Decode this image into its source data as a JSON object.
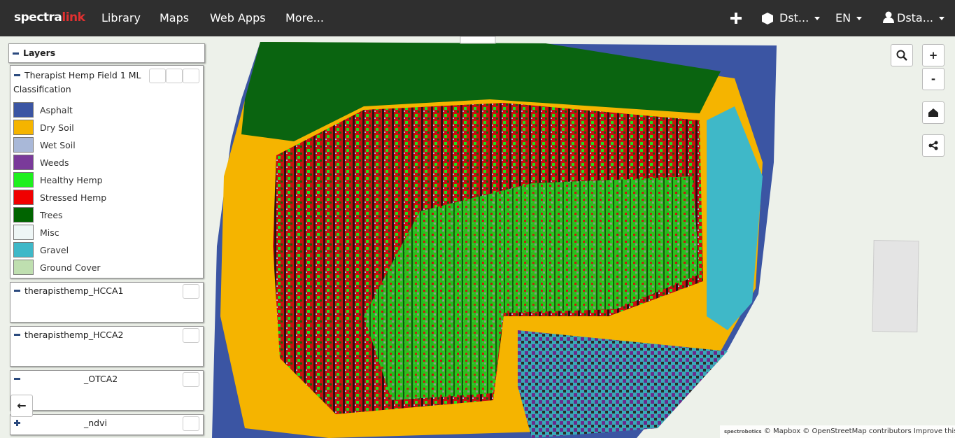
{
  "navbar": {
    "logo": [
      "spectra",
      "link"
    ],
    "menu": [
      "Library",
      "Maps",
      "Web Apps",
      "More..."
    ],
    "organization": "Dst...",
    "language": "EN",
    "user": "Dsta..."
  },
  "layers_panel": {
    "title": "Layers",
    "layers": [
      {
        "name": "Therapist Hemp Field 1 ML",
        "subtitle": "Classification",
        "legend": [
          {
            "label": "Asphalt",
            "color": "#3b55a3"
          },
          {
            "label": "Dry Soil",
            "color": "#f5b400"
          },
          {
            "label": "Wet Soil",
            "color": "#a9b8d8"
          },
          {
            "label": "Weeds",
            "color": "#7a3a9a"
          },
          {
            "label": "Healthy Hemp",
            "color": "#1ef01e"
          },
          {
            "label": "Stressed Hemp",
            "color": "#f00000"
          },
          {
            "label": "Trees",
            "color": "#006400"
          },
          {
            "label": "Misc",
            "color": "#eef6f6"
          },
          {
            "label": "Gravel",
            "color": "#3fb8c8"
          },
          {
            "label": "Ground Cover",
            "color": "#bfdfb0"
          }
        ]
      },
      {
        "name": "therapisthemp_HCCA1"
      },
      {
        "name": "therapisthemp_HCCA2"
      },
      {
        "name": "_OTCA2"
      },
      {
        "name": "_ndvi"
      }
    ]
  },
  "map": {
    "zoom_in": "+",
    "zoom_out": "-",
    "attribution": {
      "logo": "spectrobotics",
      "text": "© Mapbox © OpenStreetMap contributors",
      "link": "Improve this map"
    }
  }
}
